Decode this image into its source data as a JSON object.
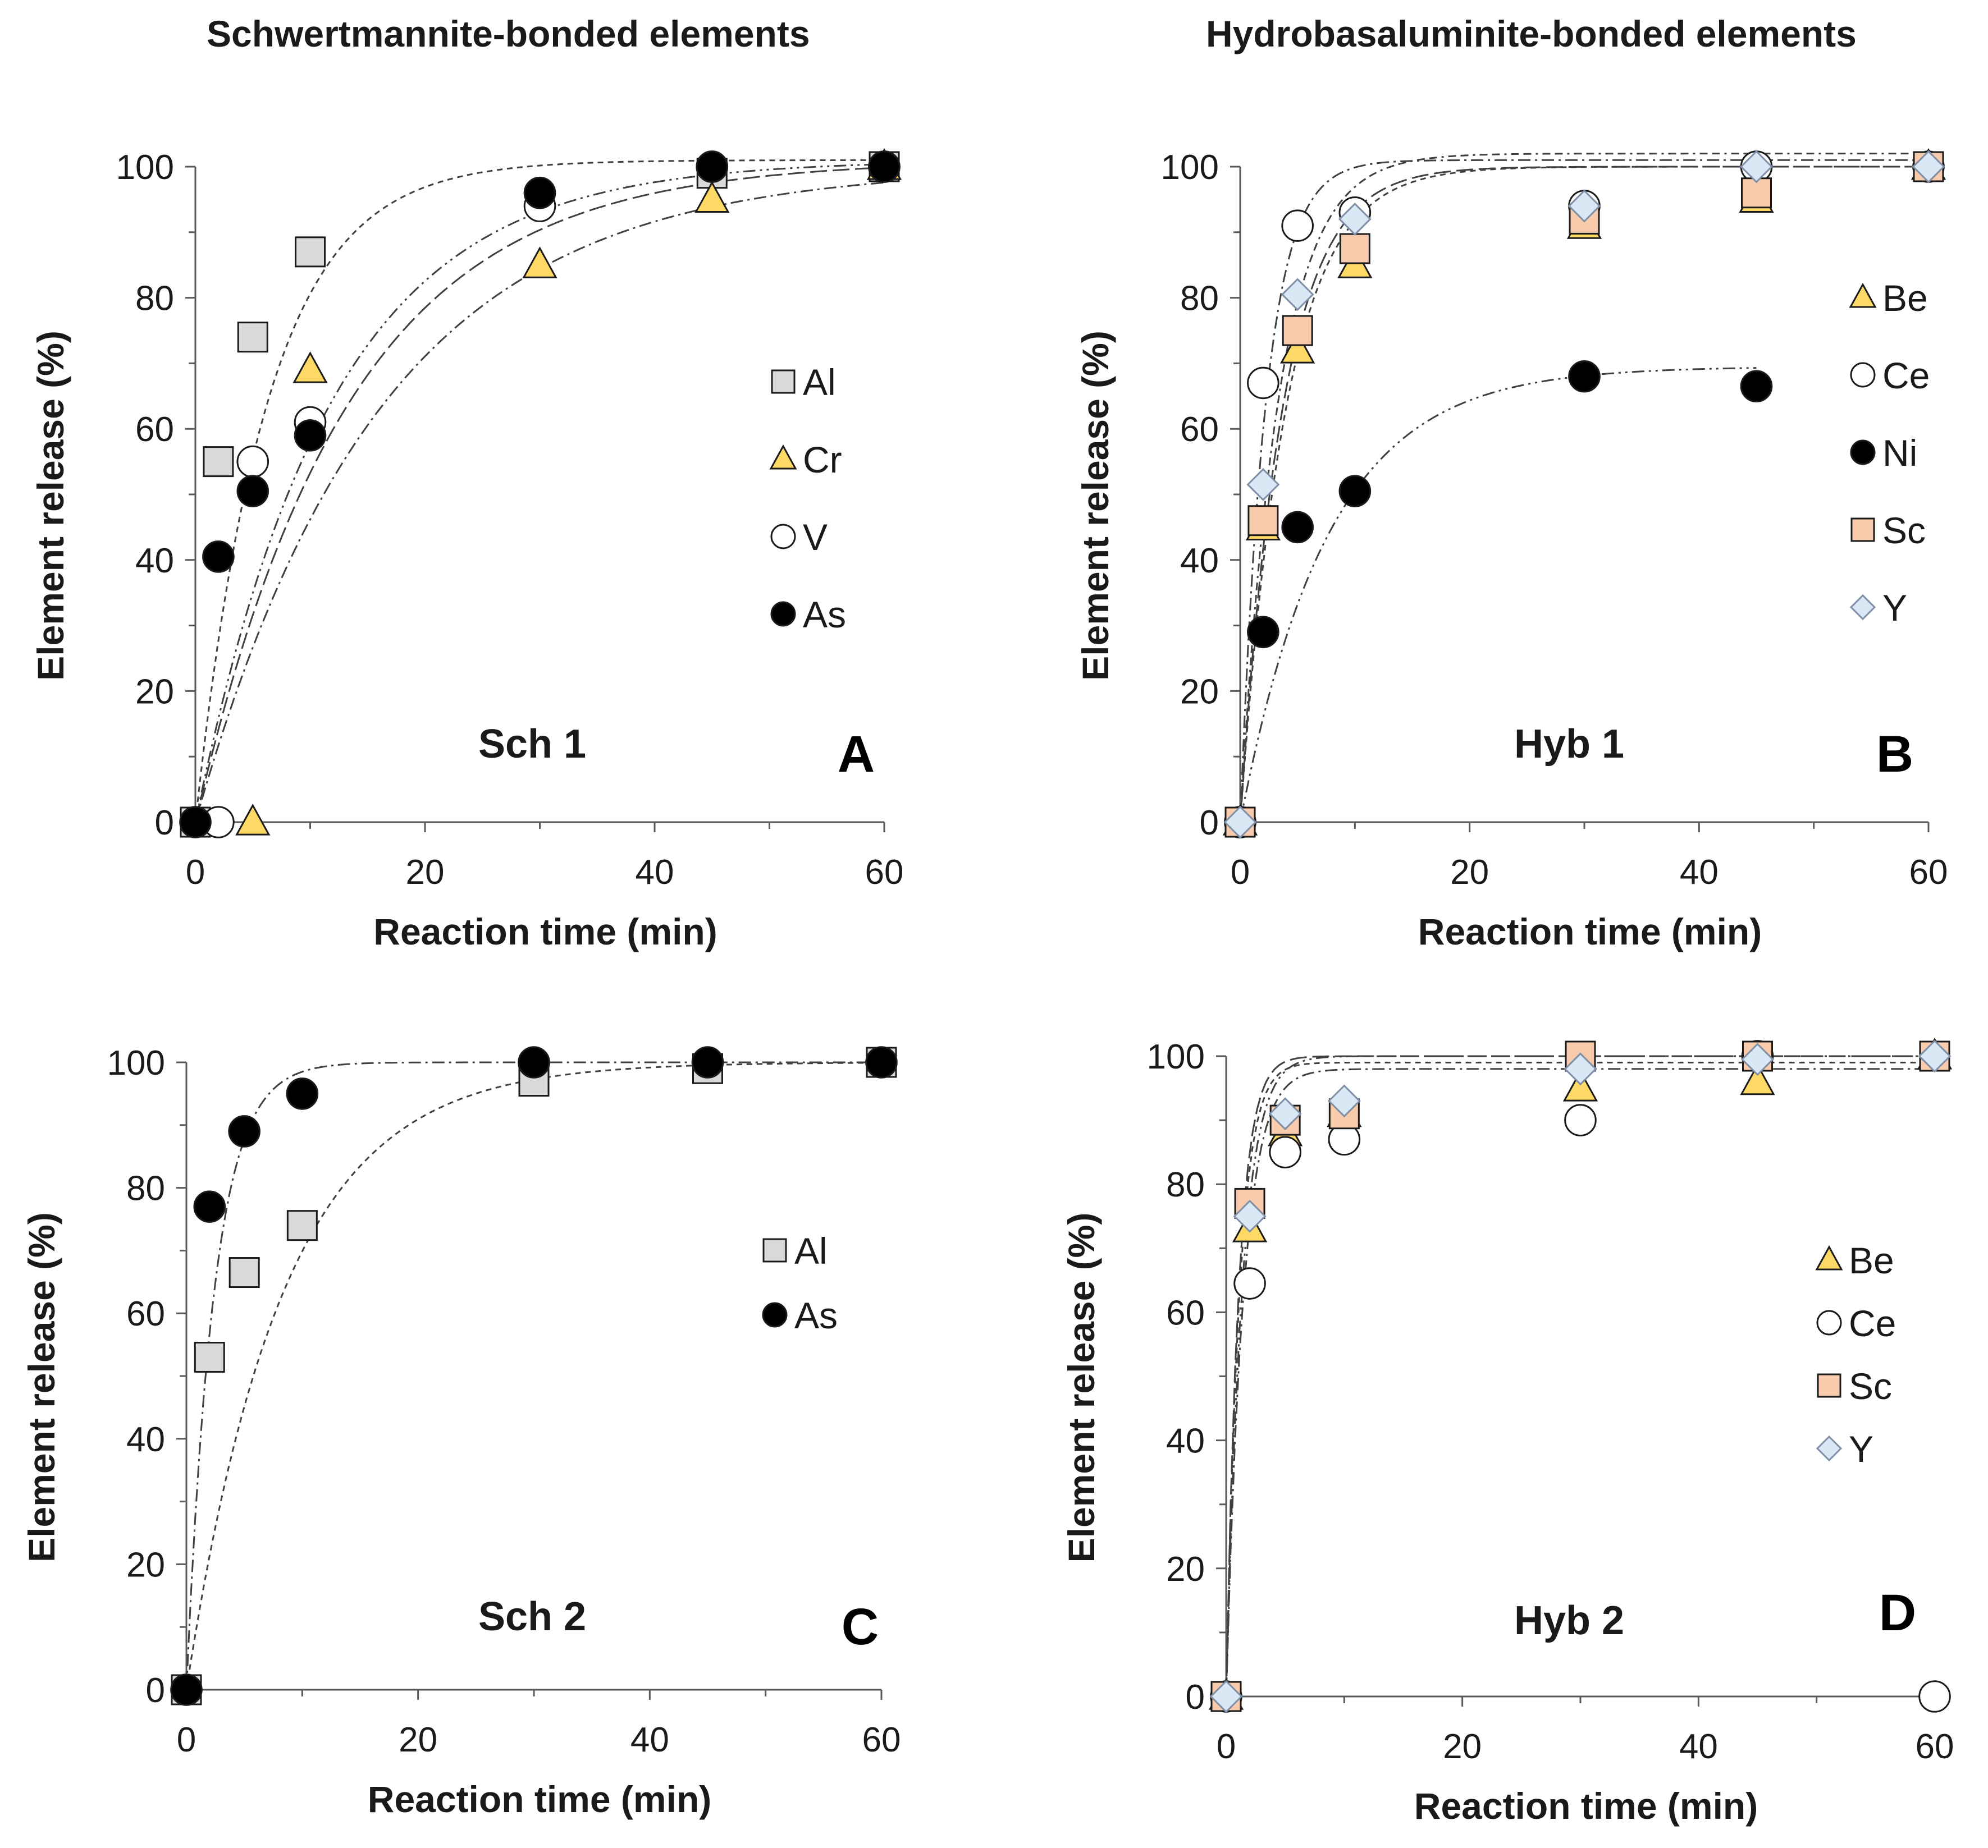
{
  "headers": {
    "left": "Schwertmannite-bonded elements",
    "right": "Hydrobasaluminite-bonded elements"
  },
  "colors": {
    "grey": "#d9d9d9",
    "yellow": "#ffd966",
    "white": "#ffffff",
    "black": "#000000",
    "salmon": "#f8cbad",
    "lightblue": "#dae8f5",
    "axis": "#595959",
    "curve": "#404040"
  },
  "chart_data": [
    {
      "id": "A",
      "type": "scatter",
      "title": "Sch 1",
      "panel_letter": "A",
      "xlabel": "Reaction time (min)",
      "ylabel": "Element release (%)",
      "xlim": [
        0,
        60
      ],
      "ylim": [
        0,
        100
      ],
      "xticks": [
        0,
        20,
        40,
        60
      ],
      "yticks": [
        0,
        20,
        40,
        60,
        80,
        100
      ],
      "legend_position": "right",
      "series": [
        {
          "name": "Al",
          "marker": "square",
          "fill": "#d9d9d9",
          "x": [
            0,
            2,
            5,
            10,
            45,
            60
          ],
          "y": [
            0,
            55,
            74,
            87,
            99,
            100
          ],
          "fit": "exp",
          "fit_params": {
            "A": 101,
            "k": 0.16,
            "t0": 0
          }
        },
        {
          "name": "Cr",
          "marker": "triangle",
          "fill": "#ffd966",
          "x": [
            5,
            10,
            30,
            45,
            60
          ],
          "y": [
            0,
            69,
            85,
            95,
            100
          ],
          "fit": "exp",
          "fit_params": {
            "A": 100,
            "k": 0.062,
            "t0": 0
          }
        },
        {
          "name": "V",
          "marker": "circle",
          "fill": "#ffffff",
          "x": [
            2,
            5,
            10,
            30,
            45,
            60
          ],
          "y": [
            0,
            55,
            61,
            94,
            100,
            100
          ],
          "fit": "exp",
          "fit_params": {
            "A": 101,
            "k": 0.085,
            "t0": 0
          }
        },
        {
          "name": "As",
          "marker": "circle",
          "fill": "#000000",
          "x": [
            0,
            2,
            5,
            10,
            30,
            45,
            60
          ],
          "y": [
            0,
            40.5,
            50.5,
            59,
            96,
            100,
            100
          ],
          "fit": "exp",
          "fit_params": {
            "A": 101,
            "k": 0.075,
            "t0": 0
          }
        }
      ]
    },
    {
      "id": "B",
      "type": "scatter",
      "title": "Hyb 1",
      "panel_letter": "B",
      "xlabel": "Reaction time (min)",
      "ylabel": "Element release (%)",
      "xlim": [
        0,
        60
      ],
      "ylim": [
        0,
        100
      ],
      "xticks": [
        0,
        20,
        40,
        60
      ],
      "yticks": [
        0,
        20,
        40,
        60,
        80,
        100
      ],
      "legend_position": "right",
      "series": [
        {
          "name": "Be",
          "marker": "triangle",
          "fill": "#ffd966",
          "x": [
            0,
            2,
            5,
            10,
            30,
            45,
            60
          ],
          "y": [
            0,
            45,
            72,
            85,
            91,
            95,
            100
          ],
          "fit": "exp",
          "fit_params": {
            "A": 100,
            "k": 0.25,
            "t0": 0
          }
        },
        {
          "name": "Ce",
          "marker": "circle",
          "fill": "#ffffff",
          "x": [
            0,
            2,
            5,
            10,
            30,
            45,
            60
          ],
          "y": [
            0,
            67,
            91,
            93,
            94,
            100,
            100
          ],
          "fit": "exp",
          "fit_params": {
            "A": 101,
            "k": 0.45,
            "t0": 0
          }
        },
        {
          "name": "Ni",
          "marker": "circle",
          "fill": "#000000",
          "x": [
            0,
            2,
            5,
            10,
            30,
            45
          ],
          "y": [
            0,
            29,
            45,
            50.5,
            68,
            66.5
          ],
          "fit": "exp",
          "fit_params": {
            "A": 69.5,
            "k": 0.13,
            "t0": 0
          }
        },
        {
          "name": "Sc",
          "marker": "square",
          "fill": "#f8cbad",
          "x": [
            0,
            2,
            5,
            10,
            30,
            45,
            60
          ],
          "y": [
            0,
            46,
            75,
            87.5,
            92,
            96,
            100
          ],
          "fit": "exp",
          "fit_params": {
            "A": 100,
            "k": 0.27,
            "t0": 0
          }
        },
        {
          "name": "Y",
          "marker": "diamond",
          "fill": "#dae8f5",
          "x": [
            0,
            2,
            5,
            10,
            30,
            45,
            60
          ],
          "y": [
            0,
            51.5,
            80.5,
            92,
            94,
            100,
            100
          ],
          "fit": "exp",
          "fit_params": {
            "A": 102,
            "k": 0.3,
            "t0": 0
          }
        }
      ]
    },
    {
      "id": "C",
      "type": "scatter",
      "title": "Sch 2",
      "panel_letter": "C",
      "xlabel": "Reaction time (min)",
      "ylabel": "Element release (%)",
      "xlim": [
        0,
        60
      ],
      "ylim": [
        0,
        100
      ],
      "xticks": [
        0,
        20,
        40,
        60
      ],
      "yticks": [
        0,
        20,
        40,
        60,
        80,
        100
      ],
      "legend_position": "right",
      "series": [
        {
          "name": "Al",
          "marker": "square",
          "fill": "#d9d9d9",
          "x": [
            0,
            2,
            5,
            10,
            30,
            45,
            60
          ],
          "y": [
            0,
            53,
            66.5,
            74,
            97,
            99,
            100
          ],
          "fit": "exp",
          "fit_params": {
            "A": 100,
            "k": 0.12,
            "t0": 0
          }
        },
        {
          "name": "As",
          "marker": "circle",
          "fill": "#000000",
          "x": [
            0,
            2,
            5,
            10,
            30,
            45,
            60
          ],
          "y": [
            0,
            77,
            89,
            95,
            100,
            100,
            100
          ],
          "fit": "exp",
          "fit_params": {
            "A": 100,
            "k": 0.42,
            "t0": 0
          }
        }
      ]
    },
    {
      "id": "D",
      "type": "scatter",
      "title": "Hyb 2",
      "panel_letter": "D",
      "xlabel": "Reaction time (min)",
      "ylabel": "Element release (%)",
      "xlim": [
        0,
        60
      ],
      "ylim": [
        0,
        100
      ],
      "xticks": [
        0,
        20,
        40,
        60
      ],
      "yticks": [
        0,
        20,
        40,
        60,
        80,
        100
      ],
      "legend_position": "right",
      "series": [
        {
          "name": "Be",
          "marker": "triangle",
          "fill": "#ffd966",
          "x": [
            0,
            2,
            5,
            10,
            30,
            45,
            60
          ],
          "y": [
            0,
            73,
            88,
            91,
            95,
            96,
            100
          ],
          "fit": "exp",
          "fit_params": {
            "A": 99,
            "k": 0.9,
            "t0": 0
          }
        },
        {
          "name": "Ce",
          "marker": "circle",
          "fill": "#ffffff",
          "x": [
            0,
            2,
            5,
            10,
            30,
            45,
            60
          ],
          "y": [
            0,
            64.5,
            85,
            87,
            90,
            100,
            0
          ],
          "fit": "exp",
          "fit_params": {
            "A": 98,
            "k": 0.7,
            "t0": 0
          }
        },
        {
          "name": "Sc",
          "marker": "square",
          "fill": "#f8cbad",
          "x": [
            0,
            2,
            5,
            10,
            30,
            45,
            60
          ],
          "y": [
            0,
            77,
            90,
            91,
            100,
            100,
            100
          ],
          "fit": "exp",
          "fit_params": {
            "A": 100,
            "k": 0.75,
            "t0": 0
          }
        },
        {
          "name": "Y",
          "marker": "diamond",
          "fill": "#dae8f5",
          "x": [
            0,
            2,
            5,
            10,
            30,
            45,
            60
          ],
          "y": [
            0,
            75,
            91,
            93,
            98,
            99.5,
            100
          ],
          "fit": "exp",
          "fit_params": {
            "A": 100,
            "k": 0.95,
            "t0": 0
          }
        }
      ]
    }
  ]
}
